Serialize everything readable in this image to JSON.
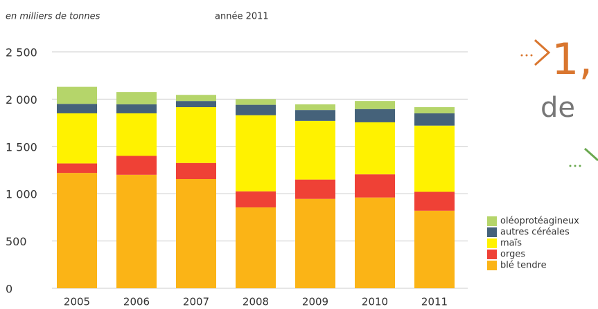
{
  "chart_data": {
    "type": "stacked_bar",
    "subtitle": "en milliers de tonnes",
    "title": "année 2011",
    "categories": [
      "2005",
      "2006",
      "2007",
      "2008",
      "2009",
      "2010",
      "2011"
    ],
    "series": [
      {
        "name": "blé tendre",
        "color": "#fbb416",
        "values": [
          1220,
          1200,
          1155,
          855,
          945,
          960,
          820
        ]
      },
      {
        "name": "orges",
        "color": "#ef4136",
        "values": [
          100,
          200,
          170,
          170,
          205,
          245,
          200
        ]
      },
      {
        "name": "maïs",
        "color": "#fff200",
        "values": [
          530,
          450,
          590,
          805,
          620,
          550,
          700
        ]
      },
      {
        "name": "autres céréales",
        "color": "#45627a",
        "values": [
          100,
          95,
          65,
          110,
          115,
          140,
          130
        ]
      },
      {
        "name": "oléoprotéagineux",
        "color": "#b5d56a",
        "values": [
          180,
          130,
          65,
          60,
          60,
          85,
          65
        ]
      }
    ],
    "ylim": [
      0,
      2500
    ],
    "yticks": [
      0,
      500,
      {
        "value": 1000,
        "label": "1 000"
      },
      {
        "value": 1500,
        "label": "1 500"
      },
      {
        "value": 2000,
        "label": "2 000"
      },
      {
        "value": 2500,
        "label": "2 500"
      }
    ],
    "grid": true,
    "legend": "right",
    "annotations": [
      "1,",
      "de"
    ]
  }
}
